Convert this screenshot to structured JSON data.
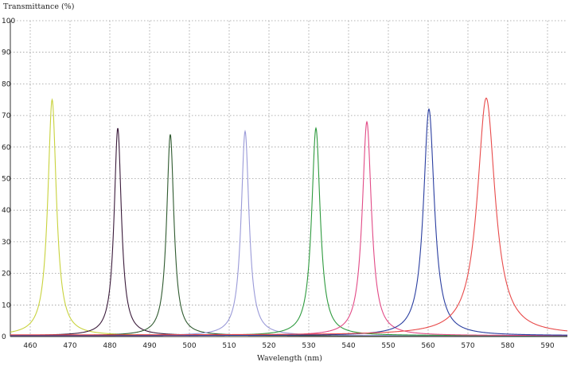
{
  "chart_data": {
    "type": "line",
    "title": "",
    "xlabel": "Wavelength (nm)",
    "ylabel": "Transmittance (%)",
    "xlim": [
      455,
      595
    ],
    "ylim": [
      0,
      100
    ],
    "x_ticks": [
      460,
      470,
      480,
      490,
      500,
      510,
      520,
      530,
      540,
      550,
      560,
      570,
      580,
      590
    ],
    "y_ticks": [
      0,
      10,
      20,
      30,
      40,
      50,
      60,
      70,
      80,
      90,
      100
    ],
    "grid": "dotted",
    "legend": "none",
    "series": [
      {
        "color": "#c8d23c",
        "peak_wavelength": 465.5,
        "peak_transmittance": 75,
        "fwhm": 2.6,
        "baseline": 0.3
      },
      {
        "color": "#3a1a3a",
        "peak_wavelength": 482,
        "peak_transmittance": 66,
        "fwhm": 2.2,
        "baseline": 0.3
      },
      {
        "color": "#2f5a2f",
        "peak_wavelength": 495.2,
        "peak_transmittance": 64,
        "fwhm": 2.2,
        "baseline": 0.3
      },
      {
        "color": "#9a9ad8",
        "peak_wavelength": 514,
        "peak_transmittance": 65,
        "fwhm": 2.4,
        "baseline": 0.3
      },
      {
        "color": "#2e9a3e",
        "peak_wavelength": 531.8,
        "peak_transmittance": 66,
        "fwhm": 2.6,
        "baseline": 0.3
      },
      {
        "color": "#e24a86",
        "peak_wavelength": 544.6,
        "peak_transmittance": 68,
        "fwhm": 2.8,
        "baseline": 0.3
      },
      {
        "color": "#2a3ea0",
        "peak_wavelength": 560.2,
        "peak_transmittance": 72,
        "fwhm": 3.3,
        "baseline": 0.3
      },
      {
        "color": "#e84a4a",
        "peak_wavelength": 574.6,
        "peak_transmittance": 75.5,
        "fwhm": 5.4,
        "baseline": 0.5
      }
    ]
  }
}
